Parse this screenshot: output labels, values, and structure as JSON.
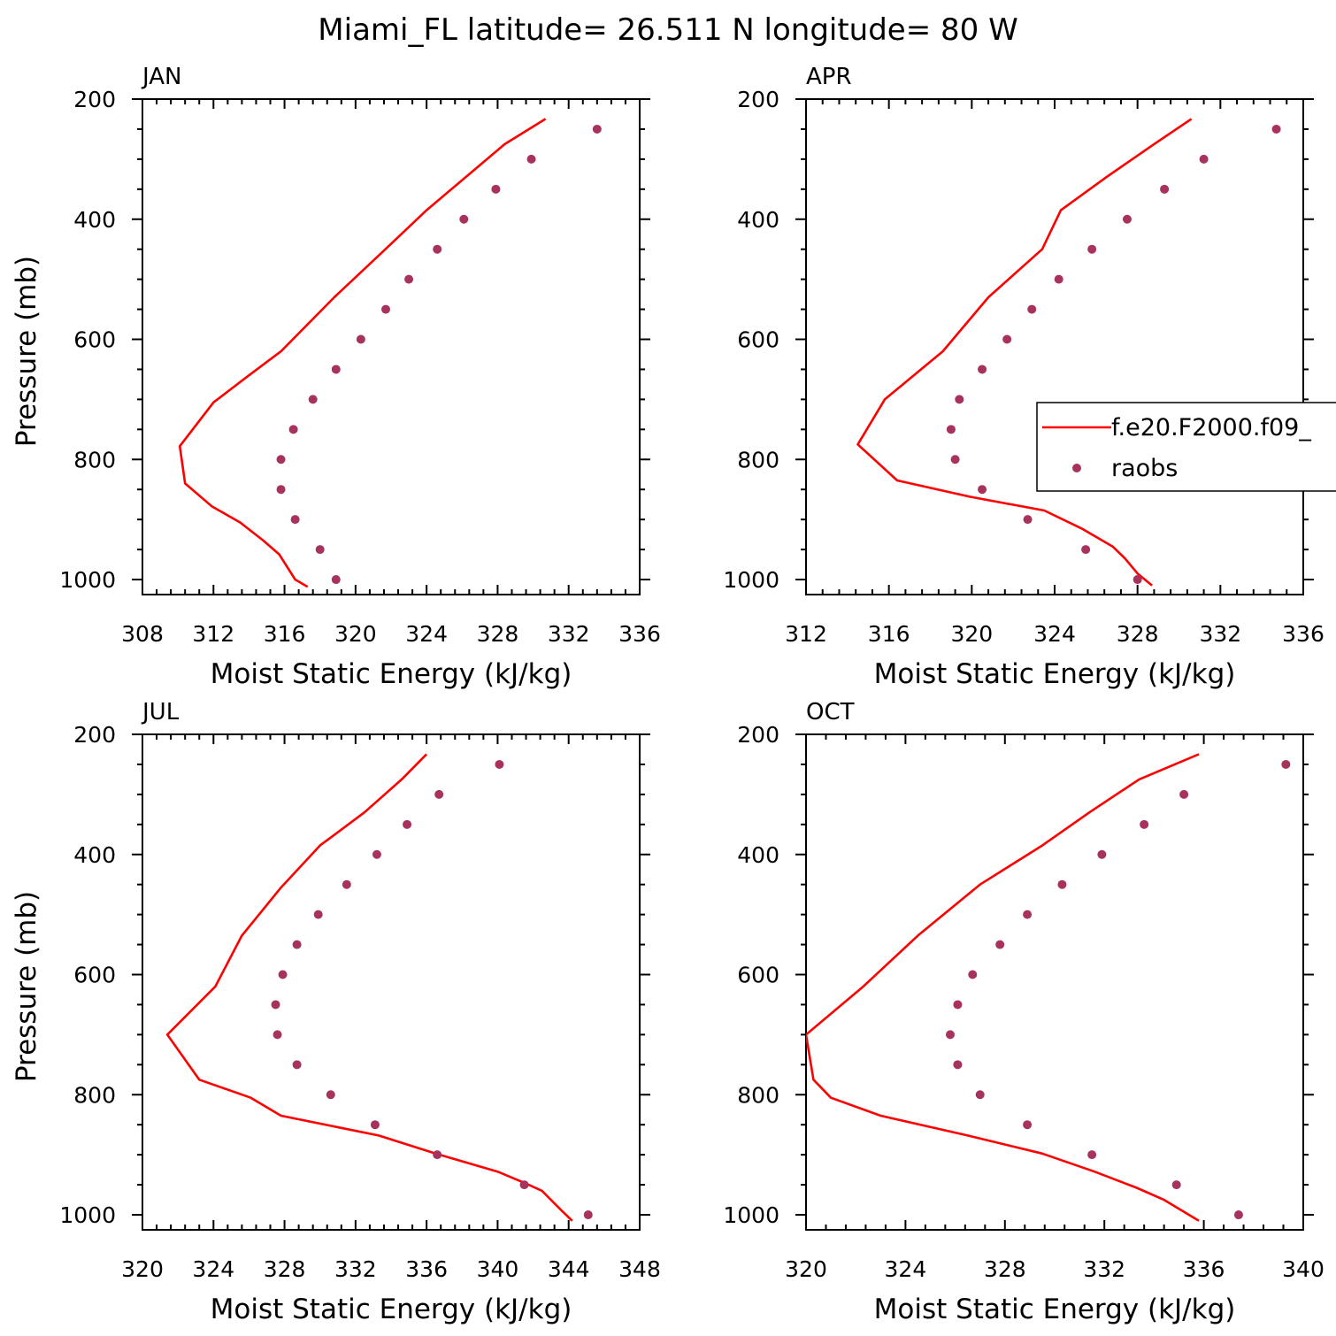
{
  "title": "Miami_FL  latitude= 26.511 N longitude= 80 W",
  "colors": {
    "model": "#ff0000",
    "obs": "#a8325e"
  },
  "legend": {
    "entries": [
      {
        "name": "f.e20.F2000.f09_",
        "kind": "line"
      },
      {
        "name": "raobs",
        "kind": "marker"
      }
    ],
    "placement": "right-middle of APR panel (clipped)"
  },
  "chart_data": [
    {
      "type": "line",
      "month": "JAN",
      "xlabel": "Moist Static Energy (kJ/kg)",
      "ylabel": "Pressure (mb)",
      "xlim": [
        308,
        336
      ],
      "ylim": [
        1025,
        200
      ],
      "xticks": [
        308,
        312,
        316,
        320,
        324,
        328,
        332,
        336
      ],
      "yticks": [
        200,
        400,
        600,
        800,
        1000
      ],
      "series": [
        {
          "name": "f.e20.F2000.f09_",
          "style": "line",
          "x": [
            330.7,
            328.4,
            326.2,
            324.0,
            321.5,
            318.8,
            315.8,
            314.0,
            312.0,
            310.1,
            310.4,
            311.9,
            313.5,
            314.8,
            315.7,
            316.6,
            317.3
          ],
          "y": [
            233,
            275,
            330,
            385,
            455,
            530,
            620,
            660,
            705,
            778,
            840,
            878,
            905,
            935,
            958,
            1000,
            1012
          ]
        },
        {
          "name": "raobs",
          "style": "marker",
          "x": [
            333.6,
            329.9,
            327.9,
            326.1,
            324.6,
            323.0,
            321.7,
            320.3,
            318.9,
            317.6,
            316.5,
            315.8,
            315.8,
            316.6,
            318.0,
            318.9
          ],
          "y": [
            250,
            300,
            350,
            400,
            450,
            500,
            550,
            600,
            650,
            700,
            750,
            800,
            850,
            900,
            950,
            1000
          ]
        }
      ]
    },
    {
      "type": "line",
      "month": "APR",
      "xlabel": "Moist Static Energy (kJ/kg)",
      "ylabel": "",
      "xlim": [
        312,
        336
      ],
      "ylim": [
        1025,
        200
      ],
      "xticks": [
        312,
        316,
        320,
        324,
        328,
        332,
        336
      ],
      "yticks": [
        200,
        400,
        600,
        800,
        1000
      ],
      "series": [
        {
          "name": "f.e20.F2000.f09_",
          "style": "line",
          "x": [
            330.6,
            328.8,
            326.5,
            324.3,
            323.4,
            320.8,
            318.6,
            317.2,
            315.8,
            314.5,
            316.4,
            319.9,
            323.5,
            325.3,
            326.8,
            327.4,
            328.0,
            328.7
          ],
          "y": [
            233,
            275,
            330,
            385,
            450,
            530,
            620,
            660,
            700,
            775,
            835,
            862,
            885,
            915,
            945,
            965,
            990,
            1010
          ]
        },
        {
          "name": "raobs",
          "style": "marker",
          "x": [
            334.7,
            331.2,
            329.3,
            327.5,
            325.8,
            324.2,
            322.9,
            321.7,
            320.5,
            319.4,
            319.0,
            319.2,
            320.5,
            322.7,
            325.5,
            328.0
          ],
          "y": [
            250,
            300,
            350,
            400,
            450,
            500,
            550,
            600,
            650,
            700,
            750,
            800,
            850,
            900,
            950,
            1000
          ]
        }
      ]
    },
    {
      "type": "line",
      "month": "JUL",
      "xlabel": "Moist Static Energy (kJ/kg)",
      "ylabel": "Pressure (mb)",
      "xlim": [
        320,
        348
      ],
      "ylim": [
        1025,
        200
      ],
      "xticks": [
        320,
        324,
        328,
        332,
        336,
        340,
        344,
        348
      ],
      "yticks": [
        200,
        400,
        600,
        800,
        1000
      ],
      "series": [
        {
          "name": "f.e20.F2000.f09_",
          "style": "line",
          "x": [
            336.0,
            334.6,
            332.5,
            330.0,
            327.8,
            325.6,
            324.1,
            321.4,
            323.2,
            326.1,
            327.8,
            333.3,
            336.5,
            340.0,
            341.6,
            342.5,
            342.9,
            343.5,
            344.2
          ],
          "y": [
            233,
            275,
            330,
            385,
            455,
            535,
            620,
            700,
            775,
            805,
            835,
            868,
            898,
            928,
            948,
            960,
            972,
            990,
            1010
          ]
        },
        {
          "name": "raobs",
          "style": "marker",
          "x": [
            340.1,
            336.7,
            334.9,
            333.2,
            331.5,
            329.9,
            328.7,
            327.9,
            327.5,
            327.6,
            328.7,
            330.6,
            333.1,
            336.6,
            341.5,
            345.1
          ],
          "y": [
            250,
            300,
            350,
            400,
            450,
            500,
            550,
            600,
            650,
            700,
            750,
            800,
            850,
            900,
            950,
            1000
          ]
        }
      ]
    },
    {
      "type": "line",
      "month": "OCT",
      "xlabel": "Moist Static Energy (kJ/kg)",
      "ylabel": "",
      "xlim": [
        320,
        340
      ],
      "ylim": [
        1025,
        200
      ],
      "xticks": [
        320,
        324,
        328,
        332,
        336,
        340
      ],
      "yticks": [
        200,
        400,
        600,
        800,
        1000
      ],
      "series": [
        {
          "name": "f.e20.F2000.f09_",
          "style": "line",
          "x": [
            335.8,
            333.4,
            331.4,
            329.5,
            327.0,
            324.5,
            322.3,
            320.0,
            320.3,
            321.0,
            323.0,
            326.5,
            329.5,
            331.6,
            333.3,
            334.4,
            335.2,
            335.8
          ],
          "y": [
            233,
            275,
            330,
            385,
            450,
            535,
            620,
            700,
            775,
            805,
            835,
            868,
            898,
            928,
            955,
            975,
            995,
            1010
          ]
        },
        {
          "name": "raobs",
          "style": "marker",
          "x": [
            339.3,
            335.2,
            333.6,
            331.9,
            330.3,
            328.9,
            327.8,
            326.7,
            326.1,
            325.8,
            326.1,
            327.0,
            328.9,
            331.5,
            334.9,
            337.4
          ],
          "y": [
            250,
            300,
            350,
            400,
            450,
            500,
            550,
            600,
            650,
            700,
            750,
            800,
            850,
            900,
            950,
            1000
          ]
        }
      ]
    }
  ]
}
